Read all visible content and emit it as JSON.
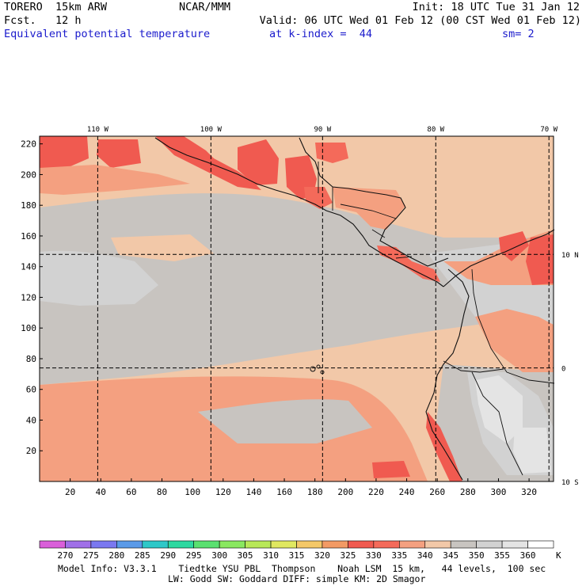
{
  "header": {
    "model": "TORERO  15km ARW",
    "center": "NCAR/MMM",
    "init": "Init: 18 UTC Tue 31 Jan 12",
    "fcst": "Fcst.   12 h",
    "valid": "Valid: 06 UTC Wed 01 Feb 12 (00 CST Wed 01 Feb 12)",
    "field": "Equivalent potential temperature",
    "level": "at k-index =  44",
    "smooth": "sm= 2"
  },
  "chart_data": {
    "type": "heatmap",
    "title": "Equivalent potential temperature",
    "xlim": [
      0,
      336
    ],
    "ylim": [
      0,
      225
    ],
    "x_ticks": [
      20,
      40,
      60,
      80,
      100,
      120,
      140,
      160,
      180,
      200,
      220,
      240,
      260,
      280,
      300,
      320
    ],
    "y_ticks": [
      20,
      40,
      60,
      80,
      100,
      120,
      140,
      160,
      180,
      200,
      220
    ],
    "lon_lines": [
      {
        "x": 38,
        "label": "110 W"
      },
      {
        "x": 112,
        "label": "100 W"
      },
      {
        "x": 185,
        "label": "90 W"
      },
      {
        "x": 259,
        "label": "80 W"
      },
      {
        "x": 333,
        "label": "70 W"
      }
    ],
    "lat_lines": [
      {
        "y": 148,
        "label": "10 N"
      },
      {
        "y": 74,
        "label": "0"
      },
      {
        "y": 0,
        "label": "10 S"
      }
    ],
    "colorbar": {
      "unit": "K",
      "levels": [
        270,
        275,
        280,
        285,
        290,
        295,
        300,
        305,
        310,
        315,
        320,
        325,
        330,
        335,
        340,
        345,
        350,
        355,
        360
      ],
      "colors": [
        "#d95fd9",
        "#a070e8",
        "#7a78f0",
        "#5a9ae8",
        "#2ec8c8",
        "#2ed8a0",
        "#5ae070",
        "#8ae860",
        "#b8e858",
        "#e0e860",
        "#f4c868",
        "#f29a64",
        "#f05a50",
        "#f46a5a",
        "#f4a080",
        "#f2c8a8",
        "#c8c4c0",
        "#d2d2d2",
        "#e4e4e4",
        "#ffffff"
      ]
    }
  },
  "footer": {
    "line1": "Model Info: V3.3.1    Tiedtke YSU PBL  Thompson    Noah LSM  15 km,   44 levels,  100 sec",
    "line2": "LW: Godd SW: Goddard DIFF: simple KM: 2D Smagor"
  }
}
